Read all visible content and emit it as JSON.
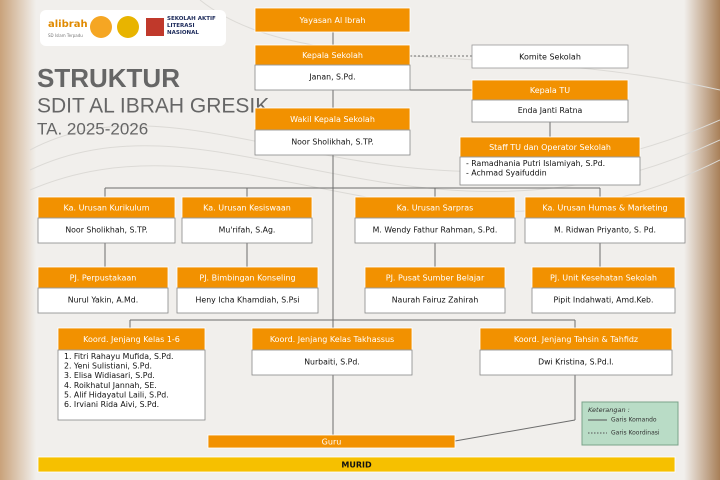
{
  "logo": {
    "brand": "alibrah",
    "tagline": "SD Islam Terpadu",
    "badge": "SEKOLAH AKTIF LITERASI NASIONAL"
  },
  "title": {
    "line1": "STRUKTUR",
    "line2": "SDIT AL IBRAH GRESIK",
    "line3": "TA. 2025-2026"
  },
  "nodes": [
    {
      "title": "Yayasan Al Ibrah",
      "members": []
    },
    {
      "title": "Kepala Sekolah",
      "members": [
        "Janan, S.Pd."
      ]
    },
    {
      "title": "Komite Sekolah",
      "members": []
    },
    {
      "title": "Kepala TU",
      "members": [
        "Enda Janti Ratna"
      ]
    },
    {
      "title": "Wakil Kepala Sekolah",
      "members": [
        "Noor Sholikhah, S.TP."
      ]
    },
    {
      "title": "Staff TU  dan Operator Sekolah",
      "members": [
        "- Ramadhania Putri Islamiyah, S.Pd.",
        "- Achmad Syaifuddin"
      ]
    },
    {
      "title": "Ka. Urusan Kurikulum",
      "members": [
        "Noor Sholikhah, S.TP."
      ]
    },
    {
      "title": "Ka. Urusan Kesiswaan",
      "members": [
        "Mu'rifah, S.Ag."
      ]
    },
    {
      "title": "Ka.  Urusan  Sarpras",
      "members": [
        "M. Wendy Fathur Rahman, S.Pd."
      ]
    },
    {
      "title": "Ka. Urusan  Humas & Marketing",
      "members": [
        "M. Ridwan Priyanto, S. Pd."
      ]
    },
    {
      "title": "PJ. Perpustakaan",
      "members": [
        "Nurul Yakin, A.Md."
      ]
    },
    {
      "title": "PJ. Bimbingan Konseling",
      "members": [
        "Heny Icha Khamdiah, S.Psi"
      ]
    },
    {
      "title": "PJ. Pusat Sumber Belajar",
      "members": [
        "Naurah Fairuz Zahirah"
      ]
    },
    {
      "title": "PJ. Unit Kesehatan Sekolah",
      "members": [
        "Pipit Indahwati, Amd.Keb."
      ]
    },
    {
      "title": "Koord. Jenjang Kelas 1-6",
      "members": [
        "1. Fitri Rahayu Mufida, S.Pd.",
        "2. Yeni Sulistiani, S.Pd.",
        "3. Elisa Widiasari, S.Pd.",
        "4. Roikhatul Jannah, SE.",
        "5. Alif Hidayatul Laili, S.Pd.",
        "6. Irviani Rida Aivi, S.Pd."
      ]
    },
    {
      "title": "Koord. Jenjang Kelas Takhassus",
      "members": [
        "Nurbaiti, S.Pd."
      ]
    },
    {
      "title": "Koord. Jenjang Tahsin & Tahfidz",
      "members": [
        "Dwi Kristina, S.Pd.I."
      ]
    },
    {
      "title": "Guru",
      "members": []
    },
    {
      "title": "MURID",
      "members": []
    }
  ],
  "legend": {
    "title": "Keterangan :",
    "command": "Garis Komando",
    "coordination": "Garis Koordinasi"
  }
}
